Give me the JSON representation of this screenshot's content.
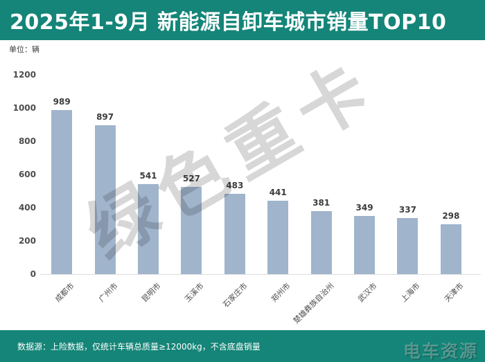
{
  "header": {
    "title": "2025年1-9月 新能源自卸车城市销量TOP10"
  },
  "unit_label": "单位：辆",
  "watermark_text": "绿色重卡",
  "colors": {
    "accent": "#148578",
    "bar": "#A0B4CC",
    "value_label": "#3C3C3C",
    "axis_label": "#4D4D4D",
    "watermark": "#D7D7D7"
  },
  "chart_data": {
    "type": "bar",
    "title": "2025年1-9月 新能源自卸车城市销量TOP10",
    "unit": "辆",
    "categories": [
      "成都市",
      "广州市",
      "昆明市",
      "玉溪市",
      "石家庄市",
      "郑州市",
      "楚雄彝族自治州",
      "武汉市",
      "上海市",
      "天津市"
    ],
    "values": [
      989,
      897,
      541,
      527,
      483,
      441,
      381,
      349,
      337,
      298
    ],
    "xlabel": "",
    "ylabel": "单位：辆",
    "ylim": [
      0,
      1200
    ],
    "yticks": [
      0,
      200,
      400,
      600,
      800,
      1000,
      1200
    ],
    "grid": false,
    "legend": false,
    "value_labels": true,
    "category_label_rotation_deg": -45
  },
  "footer": {
    "source_note": "数据源：上险数据，仅统计车辆总质量≥12000kg，不含底盘销量",
    "brand": "电车资源"
  }
}
